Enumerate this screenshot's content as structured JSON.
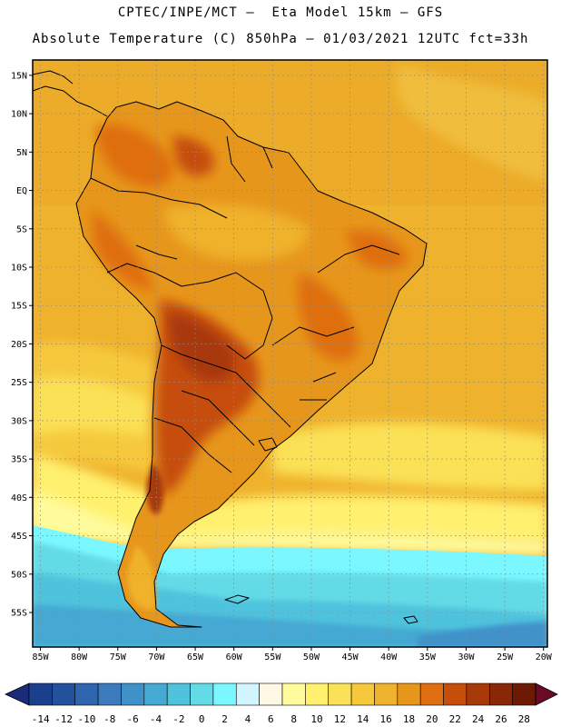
{
  "title_line1": "CPTEC/INPE/MCT –  Eta Model 15km – GFS",
  "title_line2": "Absolute Temperature (C) 850hPa – 01/03/2021 12UTC fct=33h",
  "map": {
    "lon_range": [
      -86,
      -19.5
    ],
    "lat_range": [
      -59.5,
      17
    ],
    "lat_labels": [
      "15N",
      "10N",
      "5N",
      "EQ",
      "5S",
      "10S",
      "15S",
      "20S",
      "25S",
      "30S",
      "35S",
      "40S",
      "45S",
      "50S",
      "55S"
    ],
    "lat_values": [
      15,
      10,
      5,
      0,
      -5,
      -10,
      -15,
      -20,
      -25,
      -30,
      -35,
      -40,
      -45,
      -50,
      -55
    ],
    "lon_labels": [
      "85W",
      "80W",
      "75W",
      "70W",
      "65W",
      "60W",
      "55W",
      "50W",
      "45W",
      "40W",
      "35W",
      "30W",
      "25W",
      "20W"
    ],
    "lon_values": [
      -85,
      -80,
      -75,
      -70,
      -65,
      -60,
      -55,
      -50,
      -45,
      -40,
      -35,
      -30,
      -25,
      -20
    ],
    "grid": "dashed"
  },
  "colorbar": {
    "labels": [
      "-14",
      "-12",
      "-10",
      "-8",
      "-6",
      "-4",
      "-2",
      "0",
      "2",
      "4",
      "6",
      "8",
      "10",
      "12",
      "14",
      "16",
      "18",
      "20",
      "22",
      "24",
      "26",
      "28"
    ],
    "colors": [
      "#1a3f8c",
      "#24519e",
      "#2f65ae",
      "#3b7abd",
      "#3f92c9",
      "#45a9d3",
      "#4fc3dd",
      "#63dbe6",
      "#7af7ff",
      "#d2f6ff",
      "#fff8e4",
      "#fffb9c",
      "#fff06e",
      "#fbe157",
      "#f6c93c",
      "#efb22c",
      "#e7961c",
      "#df6e10",
      "#c64e0b",
      "#a83908",
      "#8a2706",
      "#6c1a04"
    ],
    "end_low_color": "#1b2b7a",
    "end_high_color": "#6a0a25"
  }
}
